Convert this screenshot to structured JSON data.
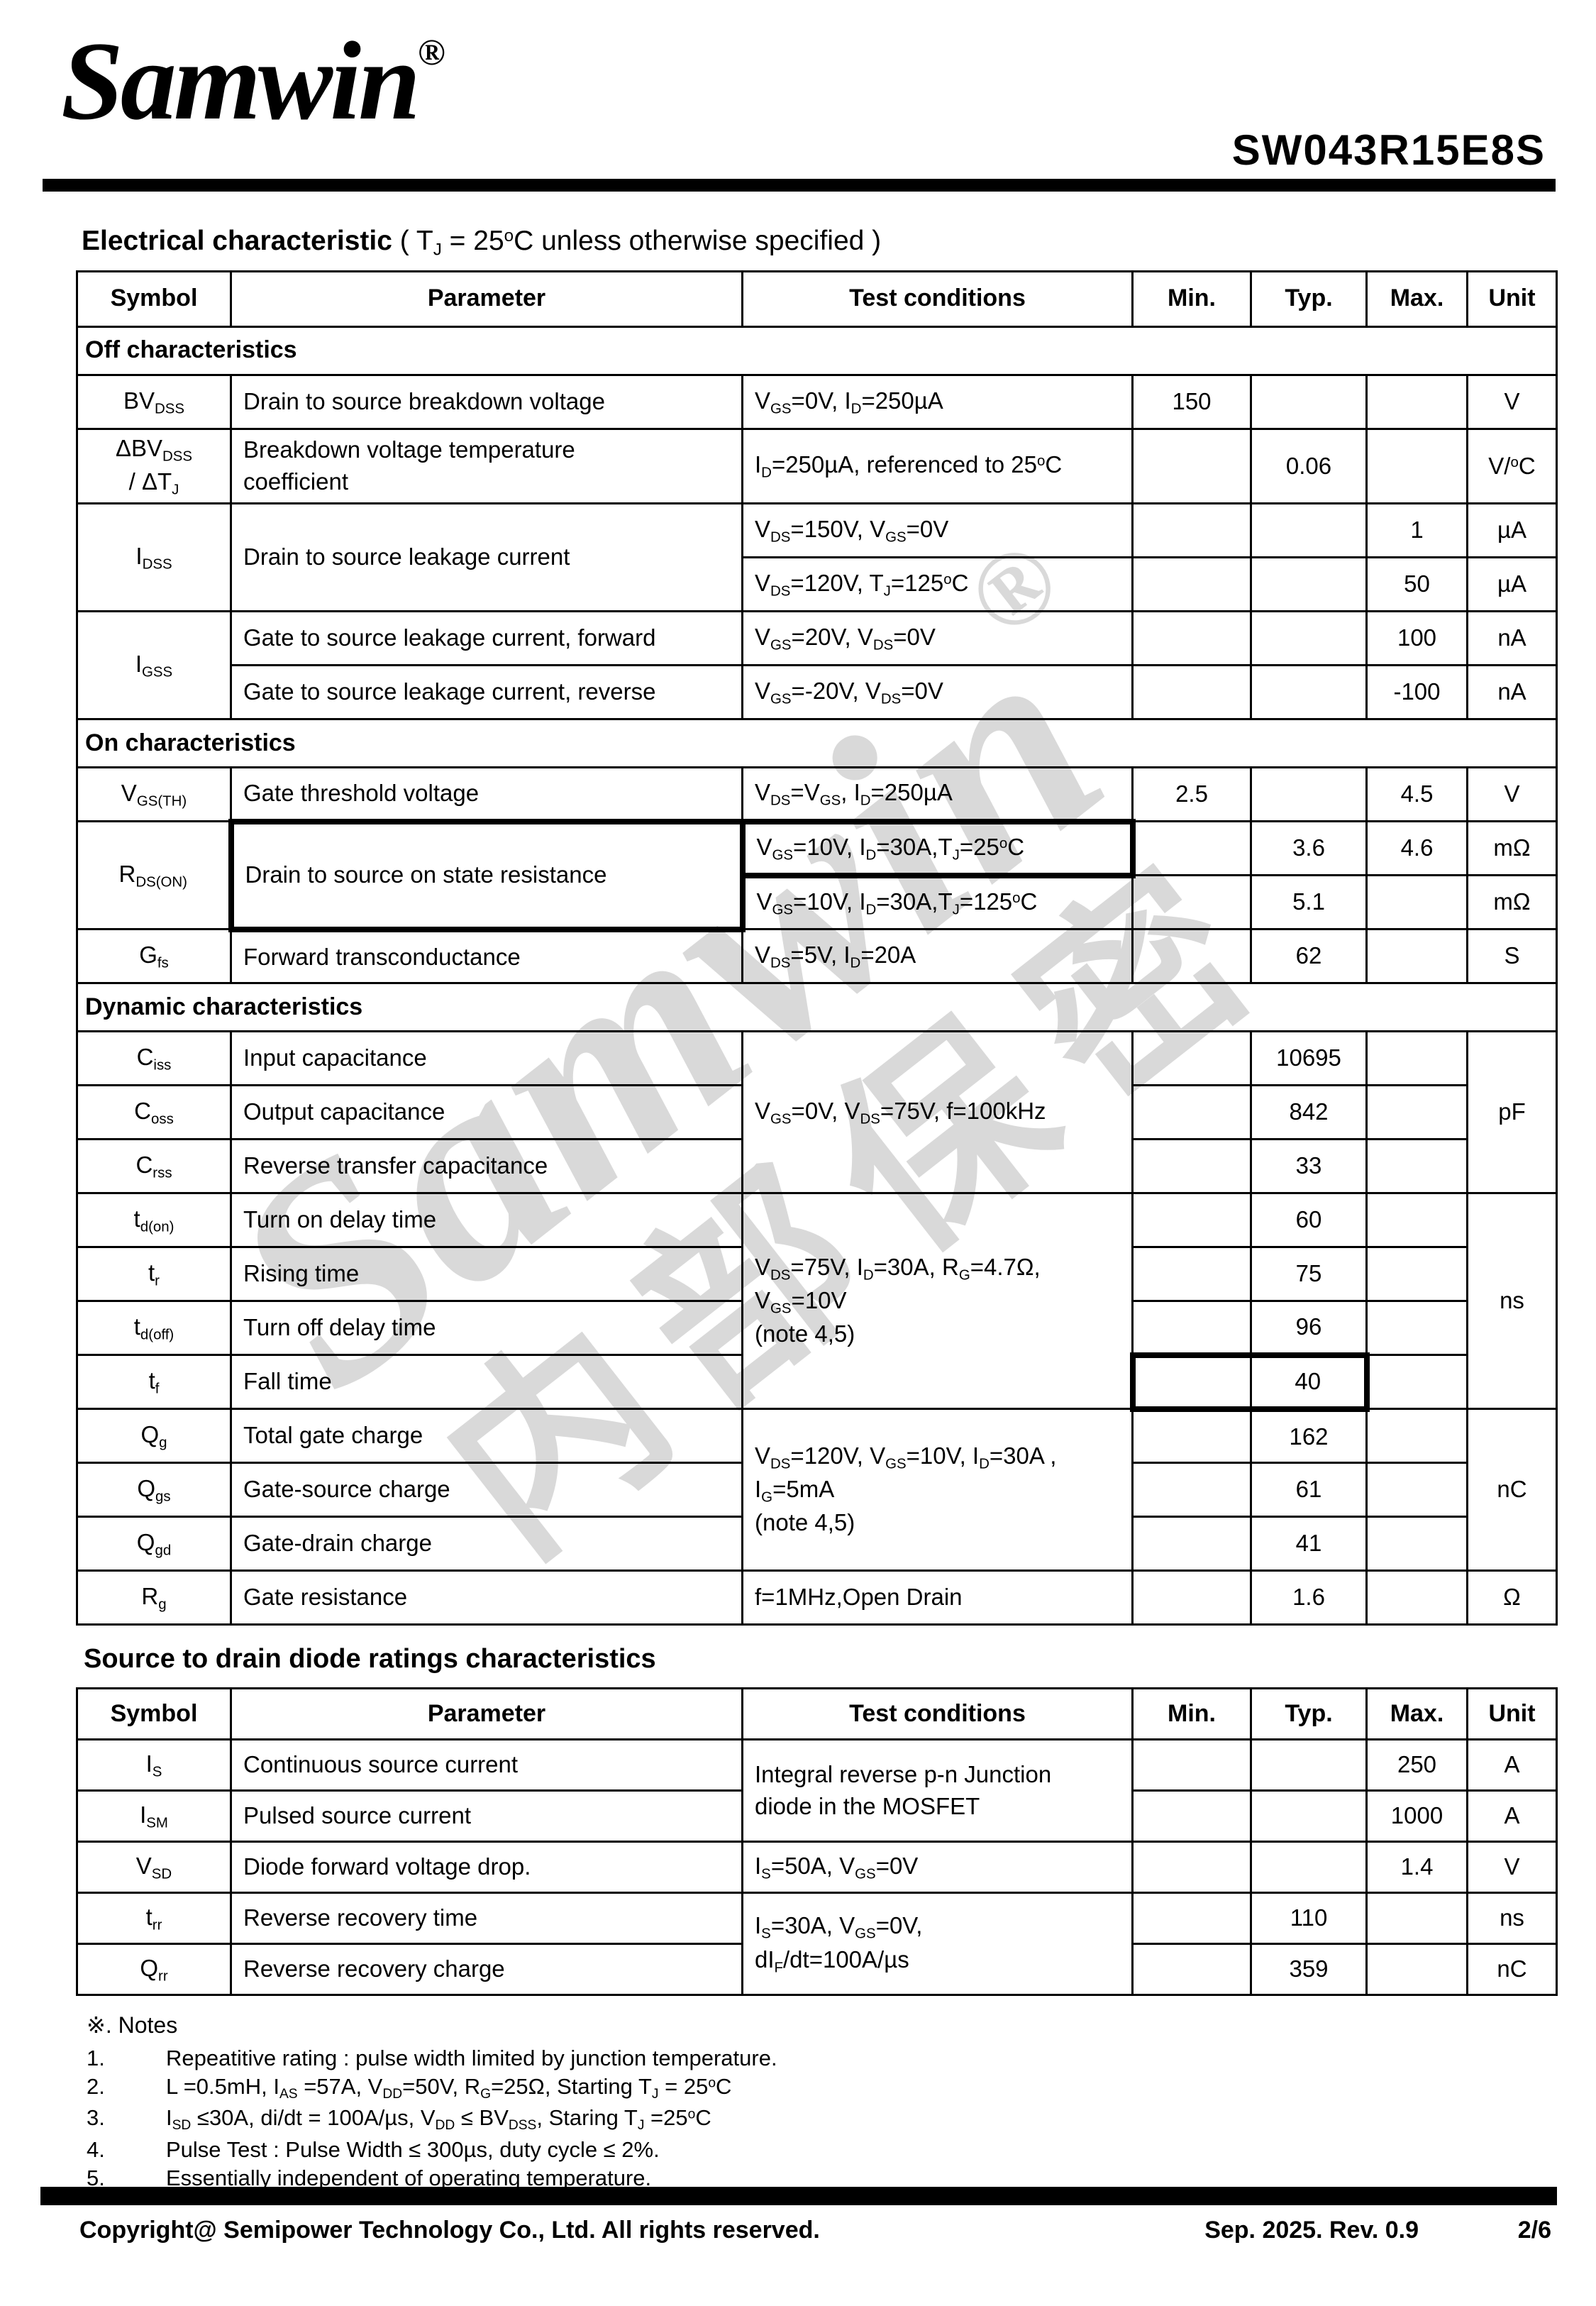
{
  "header": {
    "logo_text": "Samwin",
    "logo_reg": "®",
    "part_number": "SW043R15E8S"
  },
  "title": {
    "bold": "Electrical characteristic",
    "rest": " ( T~J~ = 25^o^C unless otherwise specified )"
  },
  "watermark": {
    "line1": "Samwin",
    "reg": "®",
    "line2": "内部保密"
  },
  "diode_section_title": "Source to drain diode ratings characteristics",
  "tables": [
    {
      "columns": [
        "Symbol",
        "Parameter",
        "Test conditions",
        "Min.",
        "Typ.",
        "Max.",
        "Unit"
      ],
      "rows": [
        {
          "section": "Off characteristics"
        },
        {
          "cells": [
            {
              "t": "BV~DSS~",
              "n": "symbol-cell"
            },
            {
              "t": "Drain to source breakdown voltage",
              "cls": "param",
              "n": "parameter-cell"
            },
            {
              "t": "V~GS~=0V, I~D~=250µA",
              "cls": "cond",
              "n": "condition-cell"
            },
            {
              "t": "150",
              "n": "min-cell"
            },
            {
              "t": "",
              "n": "typ-cell"
            },
            {
              "t": "",
              "n": "max-cell"
            },
            {
              "t": "V",
              "n": "unit-cell"
            }
          ]
        },
        {
          "cells": [
            {
              "t": "ΔBV~DSS~\n/ ΔT~J~",
              "n": "symbol-cell"
            },
            {
              "t": "Breakdown voltage temperature\ncoefficient",
              "cls": "param",
              "n": "parameter-cell"
            },
            {
              "t": "I~D~=250µA, referenced to 25^o^C",
              "cls": "cond",
              "n": "condition-cell"
            },
            {
              "t": "",
              "n": "min-cell"
            },
            {
              "t": "0.06",
              "n": "typ-cell"
            },
            {
              "t": "",
              "n": "max-cell"
            },
            {
              "t": "V/^o^C",
              "n": "unit-cell"
            }
          ]
        },
        {
          "cells": [
            {
              "t": "I~DSS~",
              "rs": 2,
              "n": "symbol-cell"
            },
            {
              "t": "Drain to source leakage current",
              "rs": 2,
              "cls": "param",
              "n": "parameter-cell"
            },
            {
              "t": "V~DS~=150V, V~GS~=0V",
              "cls": "cond",
              "n": "condition-cell"
            },
            {
              "t": "",
              "n": "min-cell"
            },
            {
              "t": "",
              "n": "typ-cell"
            },
            {
              "t": "1",
              "n": "max-cell"
            },
            {
              "t": "µA",
              "n": "unit-cell"
            }
          ]
        },
        {
          "cells": [
            {
              "t": "V~DS~=120V, T~J~=125^o^C",
              "cls": "cond",
              "n": "condition-cell"
            },
            {
              "t": "",
              "n": "min-cell"
            },
            {
              "t": "",
              "n": "typ-cell"
            },
            {
              "t": "50",
              "n": "max-cell"
            },
            {
              "t": "µA",
              "n": "unit-cell"
            }
          ]
        },
        {
          "cells": [
            {
              "t": "I~GSS~",
              "rs": 2,
              "n": "symbol-cell"
            },
            {
              "t": "Gate to source leakage current, forward",
              "cls": "param",
              "n": "parameter-cell"
            },
            {
              "t": "V~GS~=20V, V~DS~=0V",
              "cls": "cond",
              "n": "condition-cell"
            },
            {
              "t": "",
              "n": "min-cell"
            },
            {
              "t": "",
              "n": "typ-cell"
            },
            {
              "t": "100",
              "n": "max-cell"
            },
            {
              "t": "nA",
              "n": "unit-cell"
            }
          ]
        },
        {
          "cells": [
            {
              "t": "Gate to source leakage current, reverse",
              "cls": "param",
              "n": "parameter-cell"
            },
            {
              "t": "V~GS~=-20V, V~DS~=0V",
              "cls": "cond",
              "n": "condition-cell"
            },
            {
              "t": "",
              "n": "min-cell"
            },
            {
              "t": "",
              "n": "typ-cell"
            },
            {
              "t": "-100",
              "n": "max-cell"
            },
            {
              "t": "nA",
              "n": "unit-cell"
            }
          ]
        },
        {
          "section": "On characteristics"
        },
        {
          "cells": [
            {
              "t": "V~GS(TH)~",
              "n": "symbol-cell"
            },
            {
              "t": "Gate threshold voltage",
              "cls": "param",
              "n": "parameter-cell"
            },
            {
              "t": "V~DS~=V~GS~, I~D~=250µA",
              "cls": "cond",
              "n": "condition-cell"
            },
            {
              "t": "2.5",
              "n": "min-cell"
            },
            {
              "t": "",
              "n": "typ-cell"
            },
            {
              "t": "4.5",
              "n": "max-cell"
            },
            {
              "t": "V",
              "n": "unit-cell"
            }
          ]
        },
        {
          "cells": [
            {
              "t": "R~DS(ON)~",
              "rs": 2,
              "n": "symbol-cell"
            },
            {
              "t": "Drain to source on state resistance",
              "rs": 2,
              "cls": "param bx",
              "n": "parameter-cell"
            },
            {
              "t": "V~GS~=10V, I~D~=30A,T~J~=25^o^C",
              "cls": "cond bx",
              "n": "condition-cell"
            },
            {
              "t": "",
              "n": "min-cell"
            },
            {
              "t": "3.6",
              "n": "typ-cell"
            },
            {
              "t": "4.6",
              "n": "max-cell"
            },
            {
              "t": "mΩ",
              "n": "unit-cell"
            }
          ]
        },
        {
          "cells": [
            {
              "t": "V~GS~=10V, I~D~=30A,T~J~=125^o^C",
              "cls": "cond",
              "n": "condition-cell"
            },
            {
              "t": "",
              "n": "min-cell"
            },
            {
              "t": "5.1",
              "n": "typ-cell"
            },
            {
              "t": "",
              "n": "max-cell"
            },
            {
              "t": "mΩ",
              "n": "unit-cell"
            }
          ]
        },
        {
          "cells": [
            {
              "t": "G~fs~",
              "n": "symbol-cell"
            },
            {
              "t": "Forward transconductance",
              "cls": "param",
              "n": "parameter-cell"
            },
            {
              "t": "V~DS~=5V, I~D~=20A",
              "cls": "cond",
              "n": "condition-cell"
            },
            {
              "t": "",
              "n": "min-cell"
            },
            {
              "t": "62",
              "n": "typ-cell"
            },
            {
              "t": "",
              "n": "max-cell"
            },
            {
              "t": "S",
              "n": "unit-cell"
            }
          ]
        },
        {
          "section": "Dynamic characteristics"
        },
        {
          "cells": [
            {
              "t": "C~iss~",
              "n": "symbol-cell"
            },
            {
              "t": "Input capacitance",
              "cls": "param",
              "n": "parameter-cell"
            },
            {
              "t": "V~GS~=0V, V~DS~=75V, f=100kHz",
              "rs": 3,
              "cls": "cond",
              "n": "condition-cell"
            },
            {
              "t": "",
              "n": "min-cell"
            },
            {
              "t": "10695",
              "n": "typ-cell"
            },
            {
              "t": "",
              "n": "max-cell"
            },
            {
              "t": "pF",
              "rs": 3,
              "n": "unit-cell"
            }
          ]
        },
        {
          "cells": [
            {
              "t": "C~oss~",
              "n": "symbol-cell"
            },
            {
              "t": "Output capacitance",
              "cls": "param",
              "n": "parameter-cell"
            },
            {
              "t": "",
              "n": "min-cell"
            },
            {
              "t": "842",
              "n": "typ-cell"
            },
            {
              "t": "",
              "n": "max-cell"
            }
          ]
        },
        {
          "cells": [
            {
              "t": "C~rss~",
              "n": "symbol-cell"
            },
            {
              "t": "Reverse transfer capacitance",
              "cls": "param",
              "n": "parameter-cell"
            },
            {
              "t": "",
              "n": "min-cell"
            },
            {
              "t": "33",
              "n": "typ-cell"
            },
            {
              "t": "",
              "n": "max-cell"
            }
          ]
        },
        {
          "cells": [
            {
              "t": "t~d(on)~",
              "n": "symbol-cell"
            },
            {
              "t": "Turn on delay time",
              "cls": "param",
              "n": "parameter-cell"
            },
            {
              "t": "V~DS~=75V, I~D~=30A, R~G~=4.7Ω,\nV~GS~=10V\n(note 4,5)",
              "rs": 4,
              "cls": "cond",
              "n": "condition-cell"
            },
            {
              "t": "",
              "n": "min-cell"
            },
            {
              "t": "60",
              "n": "typ-cell"
            },
            {
              "t": "",
              "n": "max-cell"
            },
            {
              "t": "ns",
              "rs": 4,
              "n": "unit-cell"
            }
          ]
        },
        {
          "cells": [
            {
              "t": "t~r~",
              "n": "symbol-cell"
            },
            {
              "t": "Rising time",
              "cls": "param",
              "n": "parameter-cell"
            },
            {
              "t": "",
              "n": "min-cell"
            },
            {
              "t": "75",
              "n": "typ-cell"
            },
            {
              "t": "",
              "n": "max-cell"
            }
          ]
        },
        {
          "cells": [
            {
              "t": "t~d(off)~",
              "n": "symbol-cell"
            },
            {
              "t": "Turn off delay time",
              "cls": "param",
              "n": "parameter-cell"
            },
            {
              "t": "",
              "n": "min-cell"
            },
            {
              "t": "96",
              "n": "typ-cell"
            },
            {
              "t": "",
              "n": "max-cell"
            }
          ]
        },
        {
          "cells": [
            {
              "t": "t~f~",
              "n": "symbol-cell"
            },
            {
              "t": "Fall time",
              "cls": "param",
              "n": "parameter-cell"
            },
            {
              "t": "",
              "cls": "bxl",
              "n": "min-cell"
            },
            {
              "t": "40",
              "cls": "bxr",
              "n": "typ-cell"
            },
            {
              "t": "",
              "n": "max-cell"
            }
          ]
        },
        {
          "cells": [
            {
              "t": "Q~g~",
              "n": "symbol-cell"
            },
            {
              "t": "Total gate charge",
              "cls": "param",
              "n": "parameter-cell"
            },
            {
              "t": "V~DS~=120V, V~GS~=10V, I~D~=30A ,\nI~G~=5mA\n(note 4,5)",
              "rs": 3,
              "cls": "cond",
              "n": "condition-cell"
            },
            {
              "t": "",
              "n": "min-cell"
            },
            {
              "t": "162",
              "n": "typ-cell"
            },
            {
              "t": "",
              "n": "max-cell"
            },
            {
              "t": "nC",
              "rs": 3,
              "n": "unit-cell"
            }
          ]
        },
        {
          "cells": [
            {
              "t": "Q~gs~",
              "n": "symbol-cell"
            },
            {
              "t": "Gate-source charge",
              "cls": "param",
              "n": "parameter-cell"
            },
            {
              "t": "",
              "n": "min-cell"
            },
            {
              "t": "61",
              "n": "typ-cell"
            },
            {
              "t": "",
              "n": "max-cell"
            }
          ]
        },
        {
          "cells": [
            {
              "t": "Q~gd~",
              "n": "symbol-cell"
            },
            {
              "t": "Gate-drain charge",
              "cls": "param",
              "n": "parameter-cell"
            },
            {
              "t": "",
              "n": "min-cell"
            },
            {
              "t": "41",
              "n": "typ-cell"
            },
            {
              "t": "",
              "n": "max-cell"
            }
          ]
        },
        {
          "cells": [
            {
              "t": "R~g~",
              "n": "symbol-cell"
            },
            {
              "t": "Gate resistance",
              "cls": "param",
              "n": "parameter-cell"
            },
            {
              "t": "f=1MHz,Open Drain",
              "cls": "cond",
              "n": "condition-cell"
            },
            {
              "t": "",
              "n": "min-cell"
            },
            {
              "t": "1.6",
              "n": "typ-cell"
            },
            {
              "t": "",
              "n": "max-cell"
            },
            {
              "t": "Ω",
              "n": "unit-cell"
            }
          ]
        }
      ]
    },
    {
      "columns": [
        "Symbol",
        "Parameter",
        "Test conditions",
        "Min.",
        "Typ.",
        "Max.",
        "Unit"
      ],
      "rows": [
        {
          "cells": [
            {
              "t": "I~S~",
              "n": "symbol-cell"
            },
            {
              "t": "Continuous source current",
              "cls": "param",
              "n": "parameter-cell"
            },
            {
              "t": "Integral reverse p-n Junction\ndiode in the MOSFET",
              "rs": 2,
              "cls": "cond",
              "n": "condition-cell"
            },
            {
              "t": "",
              "n": "min-cell"
            },
            {
              "t": "",
              "n": "typ-cell"
            },
            {
              "t": "250",
              "n": "max-cell"
            },
            {
              "t": "A",
              "n": "unit-cell"
            }
          ]
        },
        {
          "cells": [
            {
              "t": "I~SM~",
              "n": "symbol-cell"
            },
            {
              "t": "Pulsed source current",
              "cls": "param",
              "n": "parameter-cell"
            },
            {
              "t": "",
              "n": "min-cell"
            },
            {
              "t": "",
              "n": "typ-cell"
            },
            {
              "t": "1000",
              "n": "max-cell"
            },
            {
              "t": "A",
              "n": "unit-cell"
            }
          ]
        },
        {
          "cells": [
            {
              "t": "V~SD~",
              "n": "symbol-cell"
            },
            {
              "t": "Diode forward voltage drop.",
              "cls": "param",
              "n": "parameter-cell"
            },
            {
              "t": "I~S~=50A, V~GS~=0V",
              "cls": "cond",
              "n": "condition-cell"
            },
            {
              "t": "",
              "n": "min-cell"
            },
            {
              "t": "",
              "n": "typ-cell"
            },
            {
              "t": "1.4",
              "n": "max-cell"
            },
            {
              "t": "V",
              "n": "unit-cell"
            }
          ]
        },
        {
          "cells": [
            {
              "t": "t~rr~",
              "n": "symbol-cell"
            },
            {
              "t": "Reverse recovery time",
              "cls": "param",
              "n": "parameter-cell"
            },
            {
              "t": "I~S~=30A, V~GS~=0V,\ndI~F~/dt=100A/µs",
              "rs": 2,
              "cls": "cond",
              "n": "condition-cell"
            },
            {
              "t": "",
              "n": "min-cell"
            },
            {
              "t": "110",
              "n": "typ-cell"
            },
            {
              "t": "",
              "n": "max-cell"
            },
            {
              "t": "ns",
              "n": "unit-cell"
            }
          ]
        },
        {
          "cells": [
            {
              "t": "Q~rr~",
              "n": "symbol-cell"
            },
            {
              "t": "Reverse recovery charge",
              "cls": "param",
              "n": "parameter-cell"
            },
            {
              "t": "",
              "n": "min-cell"
            },
            {
              "t": "359",
              "n": "typ-cell"
            },
            {
              "t": "",
              "n": "max-cell"
            },
            {
              "t": "nC",
              "n": "unit-cell"
            }
          ]
        }
      ]
    }
  ],
  "notes": {
    "heading": "※. Notes",
    "items": [
      {
        "num": "1.",
        "text": "Repeatitive rating : pulse width limited by junction temperature."
      },
      {
        "num": "2.",
        "text": "L =0.5mH, I~AS~ =57A, V~DD~=50V, R~G~=25Ω, Starting T~J~ = 25^o^C"
      },
      {
        "num": "3.",
        "text": "I~SD~ ≤30A, di/dt = 100A/µs, V~DD~ ≤ BV~DSS~, Staring T~J~ =25^o^C"
      },
      {
        "num": "4.",
        "text": "Pulse Test : Pulse Width ≤ 300µs, duty cycle ≤ 2%."
      },
      {
        "num": "5.",
        "text": "Essentially independent of operating temperature."
      }
    ]
  },
  "footer": {
    "copyright": "Copyright@ Semipower Technology Co., Ltd. All rights reserved.",
    "revision": "Sep. 2025. Rev. 0.9",
    "page": "2/6"
  }
}
